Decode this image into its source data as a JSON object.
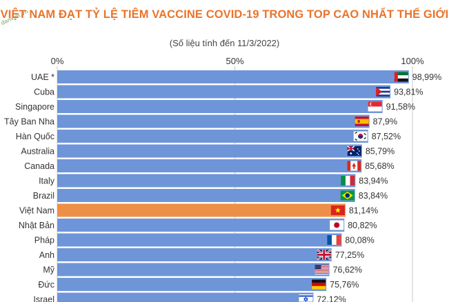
{
  "header": {
    "title": "VIỆT NAM ĐẠT TỶ LỆ TIÊM VACCINE COVID-19 TRONG TOP CAO NHẤT THẾ GIỚI",
    "subtitle": "(Số liệu tính đến 11/3/2022)",
    "watermark": "danviet.vn"
  },
  "colors": {
    "bar": "#6f95d9",
    "highlight": "#ee8f47",
    "title": "#e9742a",
    "grid": "#c8c8c8"
  },
  "chart_data": {
    "type": "bar",
    "orientation": "horizontal",
    "title": "VIỆT NAM ĐẠT TỶ LỆ TIÊM VACCINE COVID-19 TRONG TOP CAO NHẤT THẾ GIỚI",
    "subtitle": "(Số liệu tính đến 11/3/2022)",
    "xlabel": "",
    "ylabel": "",
    "xlim": [
      0,
      100
    ],
    "xticks": [
      "0%",
      "50%",
      "100%"
    ],
    "xtick_values": [
      0,
      50,
      100
    ],
    "grid": true,
    "highlight_category": "Việt Nam",
    "categories": [
      "UAE *",
      "Cuba",
      "Singapore",
      "Tây Ban Nha",
      "Hàn Quốc",
      "Australia",
      "Canada",
      "Italy",
      "Brazil",
      "Việt Nam",
      "Nhật Bản",
      "Pháp",
      "Anh",
      "Mỹ",
      "Đức",
      "Israel"
    ],
    "values": [
      98.99,
      93.81,
      91.58,
      87.9,
      87.52,
      85.79,
      85.68,
      83.94,
      83.84,
      81.14,
      80.82,
      80.08,
      77.25,
      76.62,
      75.76,
      72.12
    ],
    "value_labels": [
      "98,99%",
      "93,81%",
      "91,58%",
      "87,9%",
      "87,52%",
      "85,79%",
      "85,68%",
      "83,94%",
      "83,84%",
      "81,14%",
      "80,82%",
      "80,08%",
      "77,25%",
      "76,62%",
      "75,76%",
      "72,12%"
    ],
    "flag_icons": [
      "uae-flag-icon",
      "cuba-flag-icon",
      "singapore-flag-icon",
      "spain-flag-icon",
      "south-korea-flag-icon",
      "australia-flag-icon",
      "canada-flag-icon",
      "italy-flag-icon",
      "brazil-flag-icon",
      "vietnam-flag-icon",
      "japan-flag-icon",
      "france-flag-icon",
      "uk-flag-icon",
      "usa-flag-icon",
      "germany-flag-icon",
      "israel-flag-icon"
    ]
  }
}
